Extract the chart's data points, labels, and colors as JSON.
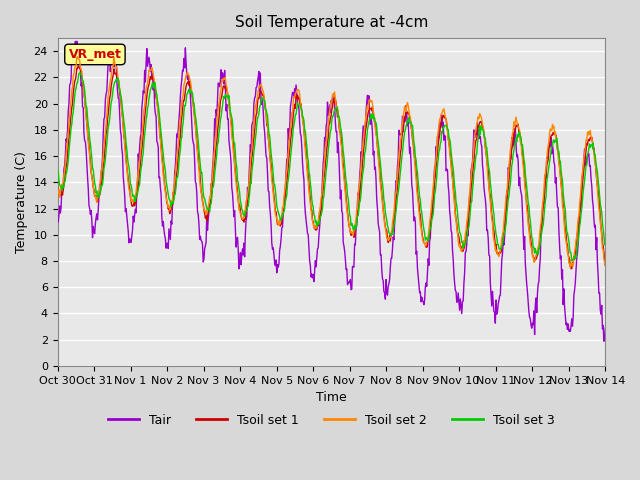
{
  "title": "Soil Temperature at -4cm",
  "xlabel": "Time",
  "ylabel": "Temperature (C)",
  "ylim": [
    0,
    25
  ],
  "yticks": [
    0,
    2,
    4,
    6,
    8,
    10,
    12,
    14,
    16,
    18,
    20,
    22,
    24
  ],
  "x_labels": [
    "Oct 30",
    "Oct 31",
    "Nov 1",
    "Nov 2",
    "Nov 3",
    "Nov 4",
    "Nov 5",
    "Nov 6",
    "Nov 7",
    "Nov 8",
    "Nov 9",
    "Nov 10",
    "Nov 11",
    "Nov 12",
    "Nov 13",
    "Nov 14"
  ],
  "line_colors": {
    "Tair": "#9900cc",
    "Tsoil_set1": "#cc0000",
    "Tsoil_set2": "#ff8800",
    "Tsoil_set3": "#00cc00"
  },
  "legend_labels": [
    "Tair",
    "Tsoil set 1",
    "Tsoil set 2",
    "Tsoil set 3"
  ],
  "watermark_text": "VR_met",
  "watermark_color": "#cc0000",
  "watermark_bg": "#ffff99",
  "n_days": 16,
  "points_per_day": 48
}
